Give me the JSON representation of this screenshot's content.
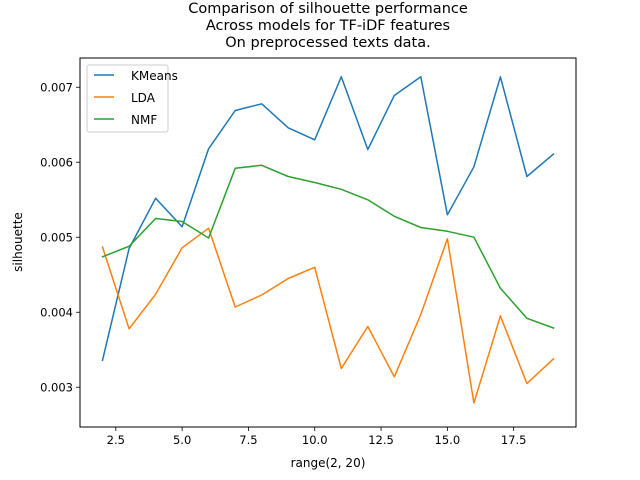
{
  "chart_data": {
    "type": "line",
    "title_lines": [
      "Comparison of silhouette performance",
      "Across models for TF-iDF features",
      "On preprocessed texts data."
    ],
    "xlabel": "range(2, 20)",
    "ylabel": "silhouette",
    "xlim": [
      1.15,
      19.85
    ],
    "ylim": [
      0.00247,
      0.00739
    ],
    "xticks": [
      2.5,
      5.0,
      7.5,
      10.0,
      12.5,
      15.0,
      17.5
    ],
    "xtick_labels": [
      "2.5",
      "5.0",
      "7.5",
      "10.0",
      "12.5",
      "15.0",
      "17.5"
    ],
    "yticks": [
      0.003,
      0.004,
      0.005,
      0.006,
      0.007
    ],
    "ytick_labels": [
      "0.003",
      "0.004",
      "0.005",
      "0.006",
      "0.007"
    ],
    "grid": false,
    "legend_position": "upper-left",
    "x": [
      2,
      3,
      4,
      5,
      6,
      7,
      8,
      9,
      10,
      11,
      12,
      13,
      14,
      15,
      16,
      17,
      18,
      19
    ],
    "series": [
      {
        "name": "KMeans",
        "color": "#1f77b4",
        "values": [
          0.00336,
          0.00485,
          0.00552,
          0.00514,
          0.00618,
          0.00669,
          0.00678,
          0.00646,
          0.0063,
          0.00714,
          0.00617,
          0.00689,
          0.00714,
          0.0053,
          0.00594,
          0.00714,
          0.00581,
          0.00611
        ]
      },
      {
        "name": "LDA",
        "color": "#ff7f0e",
        "values": [
          0.00487,
          0.00378,
          0.00424,
          0.00486,
          0.00512,
          0.00407,
          0.00423,
          0.00445,
          0.0046,
          0.00325,
          0.00381,
          0.00314,
          0.00397,
          0.00498,
          0.00279,
          0.00395,
          0.00305,
          0.00338
        ]
      },
      {
        "name": "NMF",
        "color": "#2ca02c",
        "values": [
          0.00474,
          0.00488,
          0.00525,
          0.00521,
          0.00499,
          0.00592,
          0.00596,
          0.00581,
          0.00573,
          0.00564,
          0.0055,
          0.00528,
          0.00513,
          0.00508,
          0.005,
          0.00432,
          0.00392,
          0.00379
        ]
      }
    ]
  }
}
